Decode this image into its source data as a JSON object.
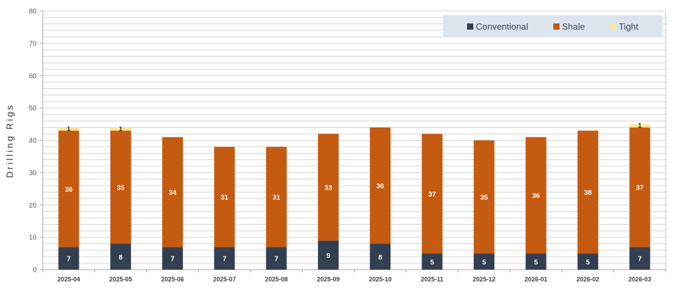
{
  "chart_data": {
    "type": "bar",
    "stacked": true,
    "title": "",
    "xlabel": "",
    "ylabel": "Drilling Rigs",
    "ylim": [
      0,
      80
    ],
    "yticks": [
      0,
      10,
      20,
      30,
      40,
      50,
      60,
      70,
      80
    ],
    "minor_grid_step": 2,
    "grid": true,
    "legend_position": "top-right",
    "categories": [
      "2025-04",
      "2025-05",
      "2025-06",
      "2025-07",
      "2025-08",
      "2025-09",
      "2025-10",
      "2025-11",
      "2025-12",
      "2026-01",
      "2026-02",
      "2026-03"
    ],
    "series": [
      {
        "name": "Conventional",
        "color": "#333f50",
        "values": [
          7,
          8,
          7,
          7,
          7,
          9,
          8,
          5,
          5,
          5,
          5,
          7
        ]
      },
      {
        "name": "Shale",
        "color": "#c55a11",
        "values": [
          36,
          35,
          34,
          31,
          31,
          33,
          36,
          37,
          35,
          36,
          38,
          37
        ]
      },
      {
        "name": "Tight",
        "color": "#ffe699",
        "values": [
          1,
          1,
          0,
          0,
          0,
          0,
          0,
          0,
          0,
          0,
          0,
          1
        ]
      }
    ]
  },
  "legend": {
    "items": [
      {
        "label": "Conventional",
        "color": "#333f50"
      },
      {
        "label": "Shale",
        "color": "#c55a11"
      },
      {
        "label": "Tight",
        "color": "#ffe699"
      }
    ]
  }
}
